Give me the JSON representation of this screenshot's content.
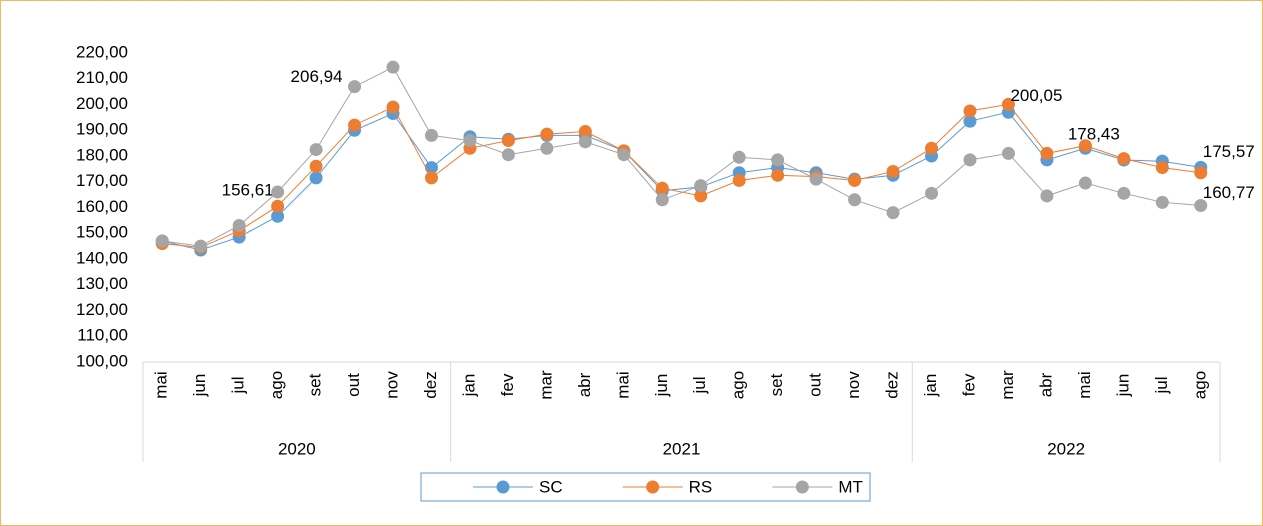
{
  "chart_data": {
    "type": "line",
    "category_groups": [
      {
        "label": "2020",
        "categories": [
          "mai",
          "jun",
          "jul",
          "ago",
          "set",
          "out",
          "nov",
          "dez"
        ]
      },
      {
        "label": "2021",
        "categories": [
          "jan",
          "fev",
          "mar",
          "abr",
          "mai",
          "jun",
          "jul",
          "ago",
          "set",
          "out",
          "nov",
          "dez"
        ]
      },
      {
        "label": "2022",
        "categories": [
          "jan",
          "fev",
          "mar",
          "abr",
          "mai",
          "jun",
          "jul",
          "ago"
        ]
      }
    ],
    "series": [
      {
        "name": "SC",
        "color": "#5b9bd5",
        "values": [
          147,
          143.5,
          148.5,
          156.61,
          171.5,
          190,
          196.5,
          175.5,
          187.5,
          186.5,
          188,
          188,
          182,
          166.5,
          168,
          173.5,
          175.5,
          173.5,
          171,
          172.5,
          180,
          193.5,
          197,
          178.5,
          183,
          178.43,
          178,
          175.57
        ],
        "value_labels": [
          null,
          null,
          null,
          "156,61",
          null,
          null,
          null,
          null,
          null,
          null,
          null,
          null,
          null,
          null,
          null,
          null,
          null,
          null,
          null,
          null,
          null,
          null,
          null,
          null,
          null,
          "178,43",
          null,
          "175,57"
        ]
      },
      {
        "name": "RS",
        "color": "#ed7d31",
        "values": [
          146,
          144.5,
          151,
          160.5,
          176,
          192,
          199,
          171.5,
          183,
          186,
          188.5,
          189.5,
          182,
          167.5,
          164.5,
          170.5,
          172.5,
          172,
          170.5,
          174,
          183,
          197.5,
          200.05,
          181,
          184,
          179,
          175.5,
          173.5
        ],
        "value_labels": [
          null,
          null,
          null,
          null,
          null,
          null,
          null,
          null,
          null,
          null,
          null,
          null,
          null,
          null,
          null,
          null,
          null,
          null,
          null,
          null,
          null,
          null,
          "200,05",
          null,
          null,
          null,
          null,
          null
        ]
      },
      {
        "name": "MT",
        "color": "#a5a5a5",
        "values": [
          147,
          145,
          153,
          166,
          182.5,
          206.94,
          214.5,
          188,
          186,
          180.5,
          183,
          185.5,
          180.5,
          163,
          168.5,
          179.5,
          178.5,
          171,
          163,
          158,
          165.5,
          178.5,
          181,
          164.5,
          169.5,
          165.5,
          162,
          160.77
        ],
        "value_labels": [
          null,
          null,
          null,
          null,
          null,
          "206,94",
          null,
          null,
          null,
          null,
          null,
          null,
          null,
          null,
          null,
          null,
          null,
          null,
          null,
          null,
          null,
          null,
          null,
          null,
          null,
          null,
          null,
          "160,77"
        ]
      }
    ],
    "ylim": [
      100,
      220
    ],
    "yticks": [
      {
        "value": 100,
        "label": "100,00"
      },
      {
        "value": 110,
        "label": "110,00"
      },
      {
        "value": 120,
        "label": "120,00"
      },
      {
        "value": 130,
        "label": "130,00"
      },
      {
        "value": 140,
        "label": "140,00"
      },
      {
        "value": 150,
        "label": "150,00"
      },
      {
        "value": 160,
        "label": "160,00"
      },
      {
        "value": 170,
        "label": "170,00"
      },
      {
        "value": 180,
        "label": "180,00"
      },
      {
        "value": 190,
        "label": "190,00"
      },
      {
        "value": 200,
        "label": "200,00"
      },
      {
        "value": 210,
        "label": "210,00"
      },
      {
        "value": 220,
        "label": "220,00"
      }
    ],
    "grid": false,
    "legend": "bottom"
  }
}
